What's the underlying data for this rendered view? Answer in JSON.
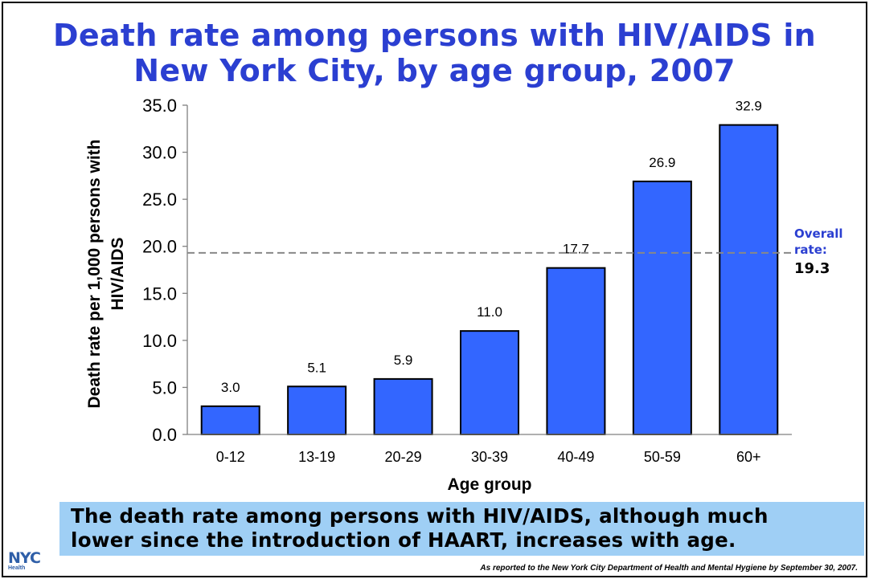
{
  "title": {
    "line1": "Death rate among persons with HIV/AIDS in",
    "line2": "New York City, by age group, 2007"
  },
  "chart_data": {
    "type": "bar",
    "categories": [
      "0-12",
      "13-19",
      "20-29",
      "30-39",
      "40-49",
      "50-59",
      "60+"
    ],
    "values": [
      3.0,
      5.1,
      5.9,
      11.0,
      17.7,
      26.9,
      32.9
    ],
    "data_labels": [
      "3.0",
      "5.1",
      "5.9",
      "11.0",
      "17.7",
      "26.9",
      "32.9"
    ],
    "xlabel": "Age group",
    "ylabel_lines": [
      "Death rate per 1,000 persons with",
      "HIV/AIDS"
    ],
    "ylim": [
      0,
      35
    ],
    "yticks": [
      "0.0",
      "5.0",
      "10.0",
      "15.0",
      "20.0",
      "25.0",
      "30.0",
      "35.0"
    ],
    "reference_line": {
      "value": 19.3,
      "label_line1": "Overall",
      "label_line2": "rate:",
      "value_text": "19.3"
    },
    "colors": {
      "bar": "#3366ff",
      "bar_stroke": "#000000",
      "reference": "#888888",
      "reference_label": "#2b3fd1"
    },
    "grid": false
  },
  "callout": {
    "line1": "The death rate among persons with HIV/AIDS, although much",
    "line2": "lower since the introduction of HAART, increases with age."
  },
  "logo": {
    "mark": "NYC",
    "sub": "Health"
  },
  "source": "As reported to the New York City Department of Health and Mental Hygiene by September 30, 2007."
}
